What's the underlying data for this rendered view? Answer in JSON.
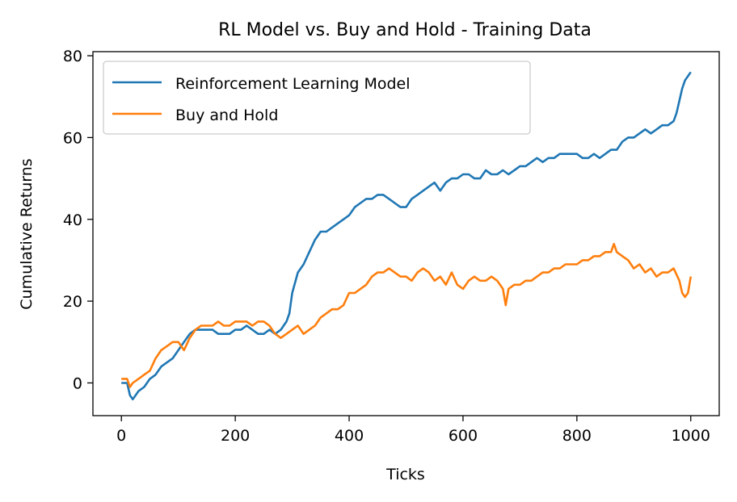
{
  "chart_data": {
    "type": "line",
    "title": "RL Model vs. Buy and Hold - Training Data",
    "xlabel": "Ticks",
    "ylabel": "Cumulative Returns",
    "xlim": [
      -50,
      1050
    ],
    "ylim": [
      -8,
      81
    ],
    "xticks": [
      0,
      200,
      400,
      600,
      800,
      1000
    ],
    "yticks": [
      0,
      20,
      40,
      60,
      80
    ],
    "xtick_labels": [
      "0",
      "200",
      "400",
      "600",
      "800",
      "1000"
    ],
    "ytick_labels": [
      "0",
      "20",
      "40",
      "60",
      "80"
    ],
    "grid": false,
    "legend": "upper-left",
    "series": [
      {
        "name": "Reinforcement Learning Model",
        "color": "#1f77b4",
        "x": [
          0,
          10,
          15,
          20,
          30,
          40,
          50,
          60,
          70,
          80,
          90,
          100,
          110,
          120,
          130,
          140,
          150,
          160,
          170,
          180,
          190,
          200,
          210,
          220,
          230,
          240,
          250,
          260,
          270,
          280,
          285,
          290,
          295,
          300,
          310,
          320,
          330,
          340,
          350,
          360,
          370,
          380,
          390,
          400,
          410,
          420,
          430,
          440,
          450,
          460,
          470,
          480,
          490,
          500,
          510,
          520,
          530,
          540,
          550,
          560,
          570,
          580,
          590,
          600,
          610,
          620,
          630,
          640,
          650,
          660,
          670,
          680,
          690,
          700,
          710,
          720,
          730,
          740,
          750,
          760,
          770,
          780,
          790,
          800,
          810,
          820,
          830,
          840,
          850,
          860,
          870,
          880,
          890,
          900,
          910,
          920,
          930,
          940,
          950,
          960,
          970,
          975,
          980,
          985,
          990,
          995,
          1000
        ],
        "y": [
          0,
          0,
          -3,
          -4,
          -2,
          -1,
          1,
          2,
          4,
          5,
          6,
          8,
          10,
          12,
          13,
          13,
          13,
          13,
          12,
          12,
          12,
          13,
          13,
          14,
          13,
          12,
          12,
          13,
          12,
          13,
          14,
          15,
          17,
          22,
          27,
          29,
          32,
          35,
          37,
          37,
          38,
          39,
          40,
          41,
          43,
          44,
          45,
          45,
          46,
          46,
          45,
          44,
          43,
          43,
          45,
          46,
          47,
          48,
          49,
          47,
          49,
          50,
          50,
          51,
          51,
          50,
          50,
          52,
          51,
          51,
          52,
          51,
          52,
          53,
          53,
          54,
          55,
          54,
          55,
          55,
          56,
          56,
          56,
          56,
          55,
          55,
          56,
          55,
          56,
          57,
          57,
          59,
          60,
          60,
          61,
          62,
          61,
          62,
          63,
          63,
          64,
          66,
          69,
          72,
          74,
          75,
          76
        ]
      },
      {
        "name": "Buy and Hold",
        "color": "#ff7f0e",
        "x": [
          0,
          5,
          10,
          15,
          20,
          30,
          40,
          50,
          60,
          70,
          80,
          90,
          100,
          110,
          120,
          130,
          140,
          150,
          160,
          170,
          180,
          190,
          200,
          210,
          220,
          230,
          240,
          250,
          260,
          270,
          280,
          290,
          300,
          310,
          320,
          330,
          340,
          350,
          360,
          370,
          380,
          390,
          400,
          410,
          420,
          430,
          440,
          450,
          460,
          470,
          480,
          490,
          500,
          510,
          520,
          530,
          540,
          550,
          560,
          570,
          580,
          590,
          600,
          610,
          620,
          630,
          640,
          650,
          660,
          670,
          675,
          680,
          690,
          700,
          710,
          720,
          730,
          740,
          750,
          760,
          770,
          780,
          790,
          800,
          810,
          820,
          830,
          840,
          850,
          860,
          865,
          870,
          880,
          890,
          900,
          910,
          920,
          930,
          940,
          950,
          960,
          970,
          980,
          985,
          990,
          995,
          1000
        ],
        "y": [
          1,
          1,
          1,
          -1,
          0,
          1,
          2,
          3,
          6,
          8,
          9,
          10,
          10,
          8,
          11,
          13,
          14,
          14,
          14,
          15,
          14,
          14,
          15,
          15,
          15,
          14,
          15,
          15,
          14,
          12,
          11,
          12,
          13,
          14,
          12,
          13,
          14,
          16,
          17,
          18,
          18,
          19,
          22,
          22,
          23,
          24,
          26,
          27,
          27,
          28,
          27,
          26,
          26,
          25,
          27,
          28,
          27,
          25,
          26,
          24,
          27,
          24,
          23,
          25,
          26,
          25,
          25,
          26,
          25,
          23,
          19,
          23,
          24,
          24,
          25,
          25,
          26,
          27,
          27,
          28,
          28,
          29,
          29,
          29,
          30,
          30,
          31,
          31,
          32,
          32,
          34,
          32,
          31,
          30,
          28,
          29,
          27,
          28,
          26,
          27,
          27,
          28,
          25,
          22,
          21,
          22,
          26
        ]
      }
    ]
  }
}
